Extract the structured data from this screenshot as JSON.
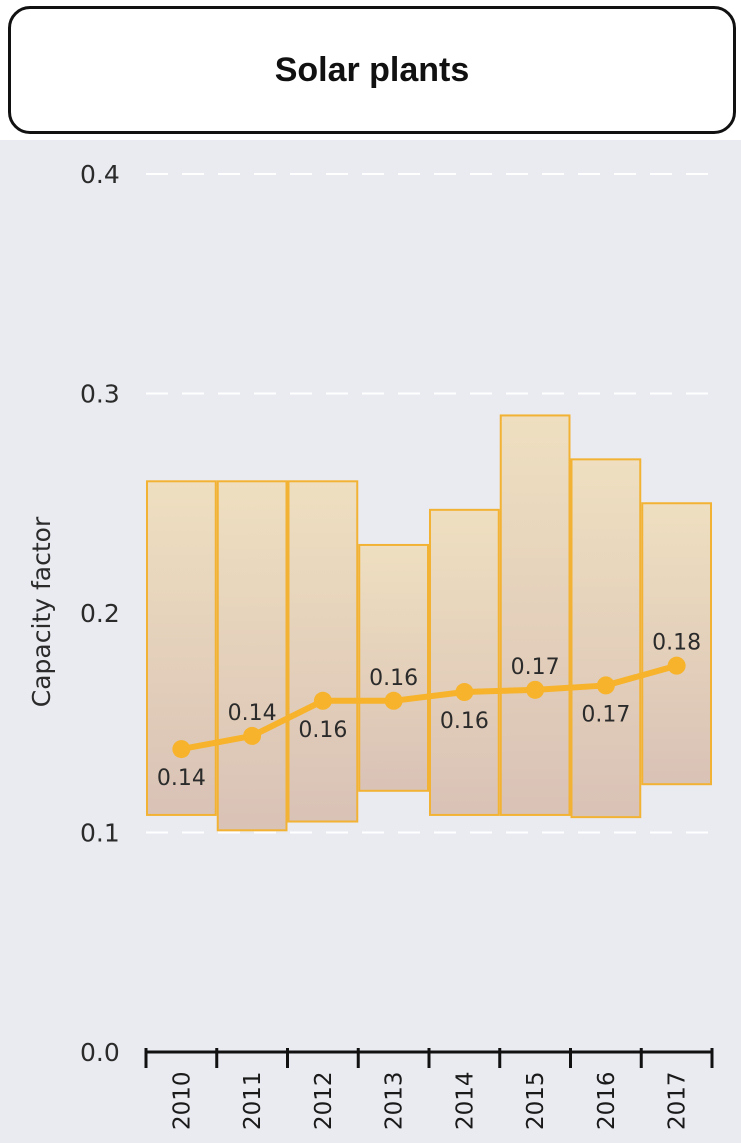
{
  "title": "Solar plants",
  "colors": {
    "background": "#e9ebf1",
    "bar_stroke": "#f2b233",
    "bar_fill_top": "#efdfc0",
    "bar_fill_bottom": "#d9c2b6",
    "line": "#f7b32b",
    "gridline": "#ffffff",
    "axis": "#111111"
  },
  "chart_data": {
    "type": "bar",
    "description_kind": "range bars with weighted-average line",
    "categories": [
      "2010",
      "2011",
      "2012",
      "2013",
      "2014",
      "2015",
      "2016",
      "2017"
    ],
    "ranges": [
      {
        "low": 0.108,
        "high": 0.26
      },
      {
        "low": 0.101,
        "high": 0.26
      },
      {
        "low": 0.105,
        "high": 0.26
      },
      {
        "low": 0.119,
        "high": 0.231
      },
      {
        "low": 0.108,
        "high": 0.247
      },
      {
        "low": 0.108,
        "high": 0.29
      },
      {
        "low": 0.107,
        "high": 0.27
      },
      {
        "low": 0.122,
        "high": 0.25
      }
    ],
    "series": [
      {
        "values": [
          0.138,
          0.144,
          0.16,
          0.16,
          0.164,
          0.165,
          0.167,
          0.176
        ],
        "labels": [
          "0.14",
          "0.14",
          "0.16",
          "0.16",
          "0.16",
          "0.17",
          "0.17",
          "0.18"
        ],
        "label_positions": [
          "below",
          "above",
          "below",
          "above",
          "below",
          "above",
          "below",
          "above"
        ]
      }
    ],
    "ylabel": "Capacity factor",
    "xlabel": "",
    "ylim": [
      0.0,
      0.4
    ],
    "yticks": [
      {
        "value": 0.0,
        "label": "0.0"
      },
      {
        "value": 0.1,
        "label": "0.1"
      },
      {
        "value": 0.2,
        "label": "0.2"
      },
      {
        "value": 0.3,
        "label": "0.3"
      },
      {
        "value": 0.4,
        "label": "0.4"
      }
    ],
    "grid": "dashed horizontal",
    "legend": "none"
  }
}
